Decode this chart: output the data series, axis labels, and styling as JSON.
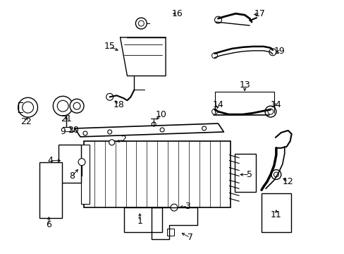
{
  "background_color": "#ffffff",
  "line_color": "#000000",
  "lw": 1.0,
  "fig_w": 4.89,
  "fig_h": 3.6,
  "dpi": 100
}
